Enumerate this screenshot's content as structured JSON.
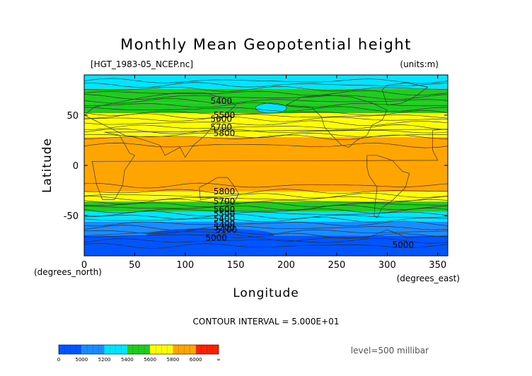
{
  "chart_data": {
    "type": "heatmap",
    "title": "Monthly Mean Geopotential height",
    "file_label": "[HGT_1983-05_NCEP.nc]",
    "units_label": "(units:m)",
    "xlabel": "Longitude",
    "ylabel": "Latitude",
    "x_unit_label": "(degrees_east)",
    "y_unit_label": "(degrees_north)",
    "xlim": [
      0,
      360
    ],
    "ylim": [
      -90,
      90
    ],
    "x_ticks": [
      0,
      50,
      100,
      150,
      200,
      250,
      300,
      350
    ],
    "y_ticks": [
      50,
      0,
      -50
    ],
    "contour_interval_text": "CONTOUR INTERVAL = 5.000E+01",
    "level_text": "level=500 millibar",
    "contour_labels": [
      {
        "text": "5400",
        "lon": 125,
        "lat": 64
      },
      {
        "text": "5500",
        "lon": 128,
        "lat": 50
      },
      {
        "text": "5600",
        "lon": 125,
        "lat": 46
      },
      {
        "text": "5700",
        "lon": 125,
        "lat": 38
      },
      {
        "text": "5800",
        "lon": 128,
        "lat": 32
      },
      {
        "text": "5800",
        "lon": 128,
        "lat": -26
      },
      {
        "text": "5700",
        "lon": 128,
        "lat": -36
      },
      {
        "text": "5600",
        "lon": 128,
        "lat": -44
      },
      {
        "text": "5500",
        "lon": 128,
        "lat": -48
      },
      {
        "text": "5400",
        "lon": 128,
        "lat": -53
      },
      {
        "text": "5300",
        "lon": 128,
        "lat": -58
      },
      {
        "text": "5200",
        "lon": 128,
        "lat": -62
      },
      {
        "text": "5100",
        "lon": 130,
        "lat": -64
      },
      {
        "text": "5000",
        "lon": 120,
        "lat": -72
      },
      {
        "text": "5000",
        "lon": 305,
        "lat": -79
      }
    ],
    "bands_lat_top_to_bottom": [
      {
        "lat": [
          76,
          90
        ],
        "color": "#00e5ff"
      },
      {
        "lat": [
          62,
          76
        ],
        "color": "#1fcc1f"
      },
      {
        "lat": [
          52,
          62
        ],
        "color": "#1fcc1f"
      },
      {
        "lat": [
          46,
          52
        ],
        "color": "#ffff00"
      },
      {
        "lat": [
          34,
          46
        ],
        "color": "#ffff00"
      },
      {
        "lat": [
          28,
          34
        ],
        "color": "#ffff00"
      },
      {
        "lat": [
          -26,
          28
        ],
        "color": "#ffa500"
      },
      {
        "lat": [
          -36,
          -26
        ],
        "color": "#ffff00"
      },
      {
        "lat": [
          -46,
          -36
        ],
        "color": "#1fcc1f"
      },
      {
        "lat": [
          -56,
          -46
        ],
        "color": "#00e5ff"
      },
      {
        "lat": [
          -70,
          -56
        ],
        "color": "#1a8cff"
      },
      {
        "lat": [
          -90,
          -70
        ],
        "color": "#0055ff"
      }
    ],
    "colorbar": {
      "colors": [
        "#0055ff",
        "#1a8cff",
        "#00e5ff",
        "#1fcc1f",
        "#ffff00",
        "#ffa500",
        "#ff2000"
      ],
      "tick_labels": [
        "0",
        "5000",
        "5200",
        "5400",
        "5600",
        "5800",
        "6000",
        "∞"
      ]
    }
  }
}
